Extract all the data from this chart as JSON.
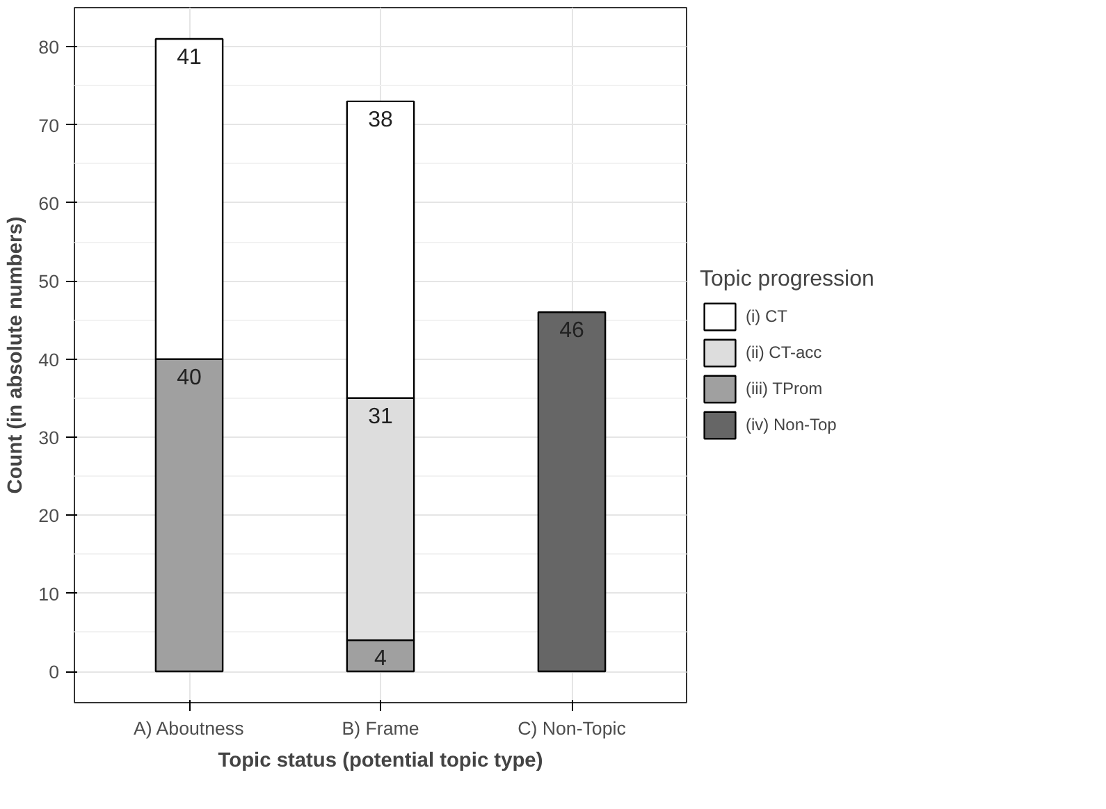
{
  "chart_data": {
    "type": "bar",
    "stacked": true,
    "xlabel": "Topic status (potential topic type)",
    "ylabel": "Count (in absolute numbers)",
    "legend_title": "Topic progression",
    "categories": [
      "A) Aboutness",
      "B) Frame",
      "C) Non-Topic"
    ],
    "series": [
      {
        "name": "(iv) Non-Top",
        "color": "#666666",
        "values": [
          null,
          null,
          46
        ]
      },
      {
        "name": "(iii) TProm",
        "color": "#a0a0a0",
        "values": [
          40,
          4,
          null
        ]
      },
      {
        "name": "(ii) CT-acc",
        "color": "#dddddd",
        "values": [
          null,
          31,
          null
        ]
      },
      {
        "name": "(i) CT",
        "color": "#ffffff",
        "values": [
          41,
          38,
          null
        ]
      }
    ],
    "ylim": [
      -4,
      85
    ],
    "yticks": [
      0,
      10,
      20,
      30,
      40,
      50,
      60,
      70,
      80
    ],
    "grid": true,
    "legend": "right",
    "data_labels": true
  }
}
